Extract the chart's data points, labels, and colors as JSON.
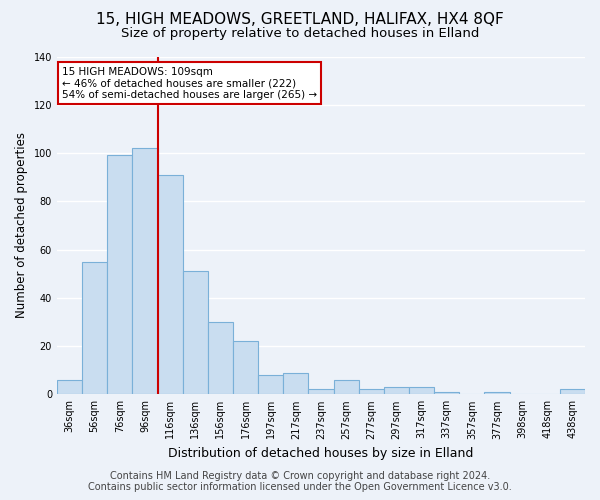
{
  "title1": "15, HIGH MEADOWS, GREETLAND, HALIFAX, HX4 8QF",
  "title2": "Size of property relative to detached houses in Elland",
  "xlabel": "Distribution of detached houses by size in Elland",
  "ylabel": "Number of detached properties",
  "categories": [
    "36sqm",
    "56sqm",
    "76sqm",
    "96sqm",
    "116sqm",
    "136sqm",
    "156sqm",
    "176sqm",
    "197sqm",
    "217sqm",
    "237sqm",
    "257sqm",
    "277sqm",
    "297sqm",
    "317sqm",
    "337sqm",
    "357sqm",
    "377sqm",
    "398sqm",
    "418sqm",
    "438sqm"
  ],
  "values": [
    6,
    55,
    99,
    102,
    91,
    51,
    30,
    22,
    8,
    9,
    2,
    6,
    2,
    3,
    3,
    1,
    0,
    1,
    0,
    0,
    2
  ],
  "bar_color": "#c9ddf0",
  "bar_edge_color": "#7ab0d8",
  "ylim": [
    0,
    140
  ],
  "yticks": [
    0,
    20,
    40,
    60,
    80,
    100,
    120,
    140
  ],
  "property_line_color": "#cc0000",
  "annotation_title": "15 HIGH MEADOWS: 109sqm",
  "annotation_line1": "← 46% of detached houses are smaller (222)",
  "annotation_line2": "54% of semi-detached houses are larger (265) →",
  "annotation_box_color": "#ffffff",
  "annotation_box_edge": "#cc0000",
  "footer1": "Contains HM Land Registry data © Crown copyright and database right 2024.",
  "footer2": "Contains public sector information licensed under the Open Government Licence v3.0.",
  "background_color": "#edf2f9",
  "grid_color": "#ffffff",
  "title_fontsize": 11,
  "subtitle_fontsize": 9.5,
  "ylabel_fontsize": 8.5,
  "xlabel_fontsize": 9,
  "tick_fontsize": 7,
  "footer_fontsize": 7
}
